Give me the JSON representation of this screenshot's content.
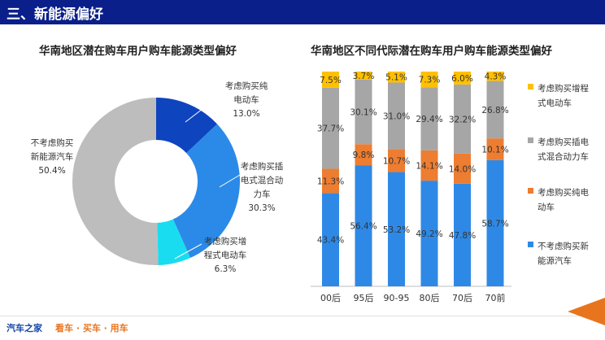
{
  "header": {
    "title": "三、新能源偏好"
  },
  "colors": {
    "header_bg": "#0a1f8a",
    "brand_blue": "#1546a8",
    "brand_orange": "#e8741e"
  },
  "footer": {
    "logo": "汽车之家",
    "slogan": "看车 · 买车 · 用车"
  },
  "chart_data": [
    {
      "type": "pie",
      "variant": "donut",
      "title": "华南地区潜在购车用户购车能源类型偏好",
      "slices": [
        {
          "label_lines": [
            "考虑购买纯",
            "电动车"
          ],
          "value": 13.0,
          "value_label": "13.0%",
          "color": "#0f44bf"
        },
        {
          "label_lines": [
            "考虑购买插",
            "电式混合动",
            "力车"
          ],
          "value": 30.3,
          "value_label": "30.3%",
          "color": "#2b8ae8"
        },
        {
          "label_lines": [
            "考虑购买增",
            "程式电动车"
          ],
          "value": 6.3,
          "value_label": "6.3%",
          "color": "#19dcf0"
        },
        {
          "label_lines": [
            "不考虑购买",
            "新能源汽车"
          ],
          "value": 50.4,
          "value_label": "50.4%",
          "color": "#bdbdbd"
        }
      ]
    },
    {
      "type": "bar",
      "variant": "stacked-100",
      "title": "华南地区不同代际潜在购车用户购车能源类型偏好",
      "categories": [
        "00后",
        "95后",
        "90-95",
        "80后",
        "70后",
        "70前"
      ],
      "legend_position": "right",
      "series": [
        {
          "name": "不考虑购买新能源汽车",
          "color": "#2e89e6",
          "values": [
            43.4,
            56.4,
            53.2,
            49.2,
            47.8,
            58.7
          ],
          "labels": [
            "43.4%",
            "56.4%",
            "53.2%",
            "49.2%",
            "47.8%",
            "58.7%"
          ]
        },
        {
          "name": "考虑购买纯电动车",
          "color": "#ed7d31",
          "values": [
            11.3,
            9.8,
            10.7,
            14.1,
            14.0,
            10.1
          ],
          "labels": [
            "11.3%",
            "9.8%",
            "10.7%",
            "14.1%",
            "14.0%",
            "10.1%"
          ]
        },
        {
          "name": "考虑购买插电式混合动力车",
          "color": "#a6a6a6",
          "values": [
            37.7,
            30.1,
            31.0,
            29.4,
            32.2,
            26.8
          ],
          "labels": [
            "37.7%",
            "30.1%",
            "31.0%",
            "29.4%",
            "32.2%",
            "26.8%"
          ]
        },
        {
          "name": "考虑购买增程式电动车",
          "color": "#ffc000",
          "values": [
            7.5,
            3.7,
            5.1,
            7.3,
            6.0,
            4.3
          ],
          "labels": [
            "7.5%",
            "3.7%",
            "5.1%",
            "7.3%",
            "6.0%",
            "4.3%"
          ]
        }
      ],
      "legend": [
        {
          "lines": [
            "考虑购买增程",
            "式电动车"
          ],
          "color": "#ffc000"
        },
        {
          "lines": [
            "考虑购买插电",
            "式混合动力车"
          ],
          "color": "#a6a6a6"
        },
        {
          "lines": [
            "考虑购买纯电",
            "动车"
          ],
          "color": "#ed7d31"
        },
        {
          "lines": [
            "不考虑购买新",
            "能源汽车"
          ],
          "color": "#2e89e6"
        }
      ]
    }
  ]
}
